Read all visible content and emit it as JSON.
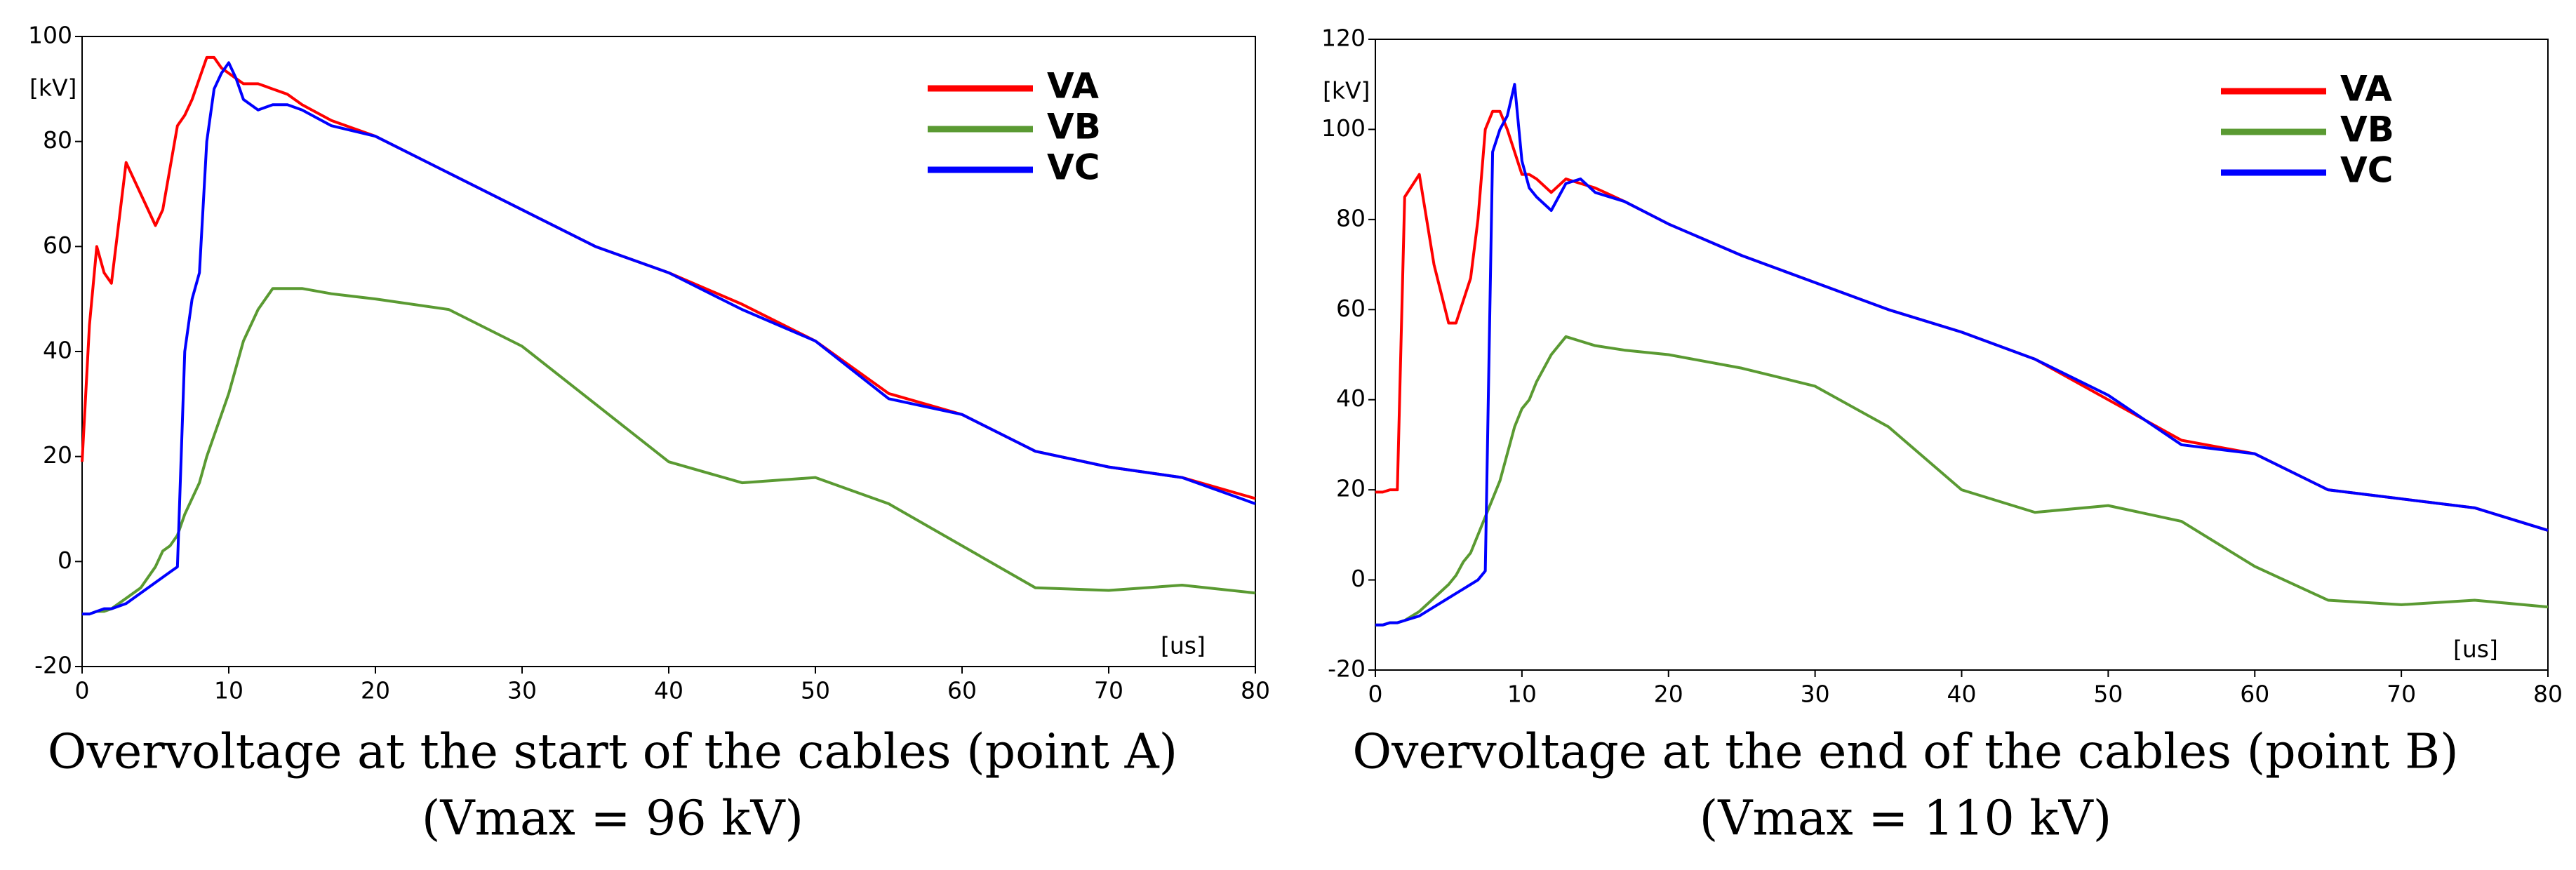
{
  "chart_data": [
    {
      "type": "line",
      "title": "Overvoltage at the start of the cables (point A)",
      "subtitle": "(Vmax = 96 kV)",
      "y_label": "[kV]",
      "x_label": "[us]",
      "x": [
        0,
        0.5,
        1,
        1.5,
        2,
        3,
        4,
        5,
        5.5,
        6,
        6.5,
        7,
        7.5,
        8,
        8.5,
        9,
        9.5,
        10,
        10.5,
        11,
        12,
        13,
        14,
        15,
        17,
        20,
        25,
        30,
        35,
        40,
        45,
        50,
        55,
        60,
        65,
        70,
        75,
        80
      ],
      "series": [
        {
          "name": "VA",
          "color": "#ff0000",
          "values": [
            19,
            45,
            60,
            55,
            53,
            76,
            70,
            64,
            67,
            75,
            83,
            85,
            88,
            92,
            96,
            96,
            94,
            93,
            92,
            91,
            91,
            90,
            89,
            87,
            84,
            81,
            74,
            67,
            60,
            55,
            49,
            42,
            32,
            28,
            21,
            18,
            16,
            12
          ]
        },
        {
          "name": "VB",
          "color": "#5a9a32",
          "values": [
            -10,
            -10,
            -9.5,
            -9.5,
            -9,
            -7,
            -5,
            -1,
            2,
            3,
            5,
            9,
            12,
            15,
            20,
            24,
            28,
            32,
            37,
            42,
            48,
            52,
            52,
            52,
            51,
            50,
            48,
            41,
            30,
            19,
            15,
            16,
            11,
            3,
            -5,
            -5.5,
            -4.5,
            -6
          ]
        },
        {
          "name": "VC",
          "color": "#0000ff",
          "values": [
            -10,
            -10,
            -9.5,
            -9,
            -9,
            -8,
            -6,
            -4,
            -3,
            -2,
            -1,
            40,
            50,
            55,
            80,
            90,
            93,
            95,
            92,
            88,
            86,
            87,
            87,
            86,
            83,
            81,
            74,
            67,
            60,
            55,
            48,
            42,
            31,
            28,
            21,
            18,
            16,
            11
          ]
        }
      ],
      "xlim": [
        0,
        80
      ],
      "ylim": [
        -20,
        100
      ],
      "xticks": [
        0,
        10,
        20,
        30,
        40,
        50,
        60,
        70,
        80
      ],
      "yticks": [
        -20,
        0,
        20,
        40,
        60,
        80,
        100
      ]
    },
    {
      "type": "line",
      "title": "Overvoltage at the end of the cables (point B)",
      "subtitle": "(Vmax = 110 kV)",
      "y_label": "[kV]",
      "x_label": "[us]",
      "x": [
        0,
        0.5,
        1,
        1.5,
        2,
        3,
        4,
        5,
        5.5,
        6,
        6.5,
        7,
        7.5,
        8,
        8.5,
        9,
        9.5,
        10,
        10.5,
        11,
        12,
        13,
        14,
        15,
        17,
        20,
        25,
        30,
        35,
        40,
        45,
        50,
        55,
        60,
        65,
        70,
        75,
        80
      ],
      "series": [
        {
          "name": "VA",
          "color": "#ff0000",
          "values": [
            19.5,
            19.5,
            20,
            20,
            85,
            90,
            70,
            57,
            57,
            62,
            67,
            80,
            100,
            104,
            104,
            100,
            95,
            90,
            90,
            89,
            86,
            89,
            88,
            87,
            84,
            79,
            72,
            66,
            60,
            55,
            49,
            40,
            31,
            28,
            20,
            18,
            16,
            11
          ]
        },
        {
          "name": "VB",
          "color": "#5a9a32",
          "values": [
            -10,
            -10,
            -9.5,
            -9.5,
            -9,
            -7,
            -4,
            -1,
            1,
            4,
            6,
            10,
            14,
            18,
            22,
            28,
            34,
            38,
            40,
            44,
            50,
            54,
            53,
            52,
            51,
            50,
            47,
            43,
            34,
            20,
            15,
            16.5,
            13,
            3,
            -4.5,
            -5.5,
            -4.5,
            -6
          ]
        },
        {
          "name": "VC",
          "color": "#0000ff",
          "values": [
            -10,
            -10,
            -9.5,
            -9.5,
            -9,
            -8,
            -6,
            -4,
            -3,
            -2,
            -1,
            0,
            2,
            95,
            100,
            103,
            110,
            93,
            87,
            85,
            82,
            88,
            89,
            86,
            84,
            79,
            72,
            66,
            60,
            55,
            49,
            41,
            30,
            28,
            20,
            18,
            16,
            11
          ]
        }
      ],
      "xlim": [
        0,
        80
      ],
      "ylim": [
        -20,
        120
      ],
      "xticks": [
        0,
        10,
        20,
        30,
        40,
        50,
        60,
        70,
        80
      ],
      "yticks": [
        -20,
        0,
        20,
        40,
        60,
        80,
        100,
        120
      ]
    }
  ]
}
